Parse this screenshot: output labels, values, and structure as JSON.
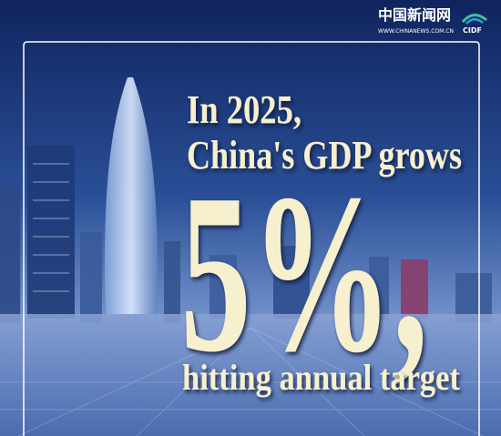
{
  "logo": {
    "name": "中国新闻网",
    "url": "WWW.CHINANEWS.COM.CN",
    "badge": "CIDF"
  },
  "headline": {
    "line1": "In 2025,",
    "line2": "China's GDP grows",
    "figure": "5%,",
    "line3": "hitting annual target"
  }
}
